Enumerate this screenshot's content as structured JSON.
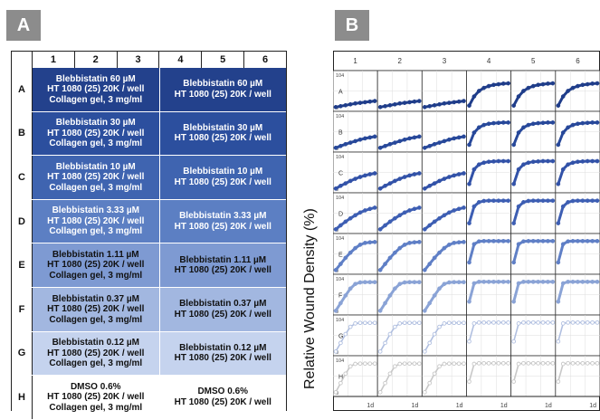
{
  "panel_a": {
    "badge": "A",
    "columns": [
      "1",
      "2",
      "3",
      "4",
      "5",
      "6"
    ],
    "rows": [
      {
        "label": "A",
        "left": [
          "Blebbistatin 60 µM",
          "HT 1080 (25) 20K / well",
          "Collagen gel, 3 mg/ml"
        ],
        "right": [
          "Blebbistatin 60 µM",
          "HT 1080 (25) 20K / well"
        ],
        "color": "#23418c",
        "text_color": "#ffffff"
      },
      {
        "label": "B",
        "left": [
          "Blebbistatin 30 µM",
          "HT 1080 (25) 20K / well",
          "Collagen gel, 3 mg/ml"
        ],
        "right": [
          "Blebbistatin 30 µM",
          "HT 1080 (25) 20K / well"
        ],
        "color": "#2c4f9e",
        "text_color": "#ffffff"
      },
      {
        "label": "C",
        "left": [
          "Blebbistatin 10 µM",
          "HT 1080 (25) 20K / well",
          "Collagen gel, 3 mg/ml"
        ],
        "right": [
          "Blebbistatin 10 µM",
          "HT 1080 (25) 20K / well"
        ],
        "color": "#3f64b0",
        "text_color": "#ffffff"
      },
      {
        "label": "D",
        "left": [
          "Blebbistatin 3.33 µM",
          "HT 1080 (25) 20K / well",
          "Collagen gel, 3 mg/ml"
        ],
        "right": [
          "Blebbistatin 3.33 µM",
          "HT 1080 (25) 20K / well"
        ],
        "color": "#5c7fc3",
        "text_color": "#ffffff"
      },
      {
        "label": "E",
        "left": [
          "Blebbistatin 1.11 µM",
          "HT 1080 (25) 20K / well",
          "Collagen gel, 3 mg/ml"
        ],
        "right": [
          "Blebbistatin 1.11 µM",
          "HT 1080 (25) 20K / well"
        ],
        "color": "#7e9ad2",
        "text_color": "#111111"
      },
      {
        "label": "F",
        "left": [
          "Blebbistatin 0.37 µM",
          "HT 1080 (25) 20K / well",
          "Collagen gel, 3 mg/ml"
        ],
        "right": [
          "Blebbistatin 0.37 µM",
          "HT 1080 (25) 20K / well"
        ],
        "color": "#a2b7e0",
        "text_color": "#111111"
      },
      {
        "label": "G",
        "left": [
          "Blebbistatin 0.12 µM",
          "HT 1080 (25) 20K / well",
          "Collagen gel, 3 mg/ml"
        ],
        "right": [
          "Blebbistatin 0.12 µM",
          "HT 1080 (25) 20K / well"
        ],
        "color": "#c5d3ee",
        "text_color": "#111111"
      },
      {
        "label": "H",
        "left": [
          "DMSO 0.6%",
          "HT 1080 (25) 20K / well",
          "Collagen gel, 3 mg/ml"
        ],
        "right": [
          "DMSO 0.6%",
          "HT 1080 (25) 20K / well"
        ],
        "color": "#ffffff",
        "text_color": "#111111"
      }
    ]
  },
  "panel_b": {
    "badge": "B",
    "ylabel": "Relative Wound Density (%)",
    "column_labels": [
      "1",
      "2",
      "3",
      "4",
      "5",
      "6"
    ],
    "row_labels": [
      "A",
      "B",
      "C",
      "D",
      "E",
      "F",
      "G",
      "H"
    ],
    "y_top_tick": "104",
    "y_bottom_tick": "0",
    "x_tick": "1d",
    "row_colors": [
      "#1f3d8a",
      "#27489a",
      "#3252a8",
      "#3d5eb3",
      "#5f7fc6",
      "#8aa3d6",
      "#b0bfe0",
      "#c8c8c8"
    ]
  },
  "chart_data": {
    "type": "line",
    "ylabel": "Relative Wound Density (%)",
    "ylim": [
      0,
      104
    ],
    "x_tick_label": "1d",
    "grid": true,
    "rows": [
      "A",
      "B",
      "C",
      "D",
      "E",
      "F",
      "G",
      "H"
    ],
    "columns": [
      "1",
      "2",
      "3",
      "4",
      "5",
      "6"
    ],
    "series": [
      {
        "row": "A",
        "columns": "1-3",
        "values": [
          5,
          8,
          11,
          14,
          17,
          19,
          21,
          23,
          25
        ]
      },
      {
        "row": "A",
        "columns": "4-6",
        "values": [
          10,
          40,
          58,
          68,
          74,
          78,
          80,
          82,
          83
        ]
      },
      {
        "row": "B",
        "columns": "1-3",
        "values": [
          5,
          11,
          17,
          22,
          27,
          32,
          36,
          39,
          42
        ]
      },
      {
        "row": "B",
        "columns": "4-6",
        "values": [
          15,
          55,
          72,
          80,
          84,
          86,
          87,
          88,
          88
        ]
      },
      {
        "row": "C",
        "columns": "1-3",
        "values": [
          5,
          14,
          22,
          30,
          37,
          43,
          48,
          52,
          55
        ]
      },
      {
        "row": "C",
        "columns": "4-6",
        "values": [
          20,
          68,
          84,
          90,
          93,
          94,
          95,
          95,
          95
        ]
      },
      {
        "row": "D",
        "columns": "1-3",
        "values": [
          5,
          18,
          30,
          41,
          51,
          60,
          67,
          72,
          76
        ]
      },
      {
        "row": "D",
        "columns": "4-6",
        "values": [
          25,
          80,
          94,
          98,
          99,
          99,
          99,
          99,
          99
        ]
      },
      {
        "row": "E",
        "columns": "1-3",
        "values": [
          5,
          25,
          45,
          62,
          77,
          88,
          94,
          96,
          97
        ]
      },
      {
        "row": "E",
        "columns": "4-6",
        "values": [
          30,
          90,
          99,
          100,
          100,
          100,
          100,
          100,
          100
        ]
      },
      {
        "row": "F",
        "columns": "1-3",
        "values": [
          5,
          30,
          55,
          78,
          93,
          98,
          99,
          99,
          99
        ]
      },
      {
        "row": "F",
        "columns": "4-6",
        "values": [
          35,
          95,
          100,
          100,
          100,
          100,
          100,
          100,
          100
        ]
      },
      {
        "row": "G",
        "columns": "1-3",
        "values": [
          5,
          33,
          62,
          86,
          97,
          99,
          99,
          99,
          99
        ]
      },
      {
        "row": "G",
        "columns": "4-6",
        "values": [
          38,
          97,
          100,
          100,
          100,
          100,
          100,
          100,
          100
        ]
      },
      {
        "row": "H",
        "columns": "1-3",
        "values": [
          5,
          35,
          66,
          90,
          98,
          99,
          99,
          99,
          99
        ]
      },
      {
        "row": "H",
        "columns": "4-6",
        "values": [
          40,
          98,
          100,
          100,
          100,
          100,
          100,
          100,
          100
        ]
      }
    ]
  }
}
